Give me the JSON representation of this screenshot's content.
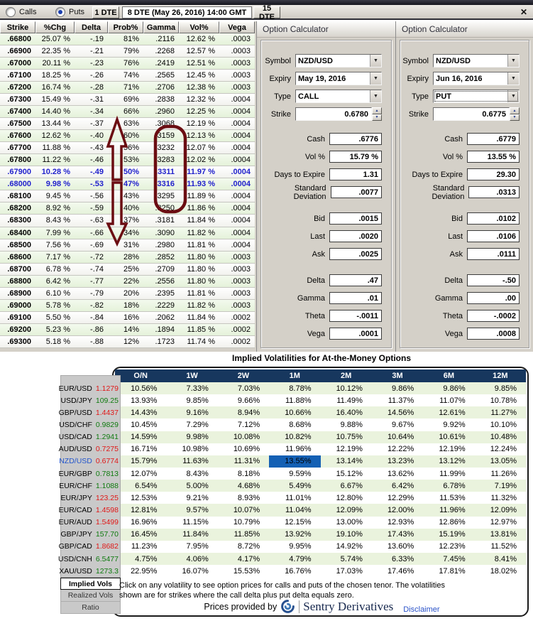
{
  "toolbar": {
    "calls_label": "Calls",
    "puts_label": "Puts",
    "dte1_label": "1 DTE",
    "dte_display": "8 DTE (May 26, 2016) 14:00 GMT",
    "dte15_label": "15 DTE",
    "close_glyph": "✕"
  },
  "chain": {
    "headers": [
      "Strike",
      "%Chg",
      "Delta",
      "Prob%",
      "Gamma",
      "Vol%",
      "Vega"
    ],
    "highlight_rows": [
      11,
      12
    ],
    "rows": [
      [
        ".66800",
        "25.07 %",
        "-.19",
        "81%",
        ".2116",
        "12.62 %",
        ".0003"
      ],
      [
        ".66900",
        "22.35 %",
        "-.21",
        "79%",
        ".2268",
        "12.57 %",
        ".0003"
      ],
      [
        ".67000",
        "20.11 %",
        "-.23",
        "76%",
        ".2419",
        "12.51 %",
        ".0003"
      ],
      [
        ".67100",
        "18.25 %",
        "-.26",
        "74%",
        ".2565",
        "12.45 %",
        ".0003"
      ],
      [
        ".67200",
        "16.74 %",
        "-.28",
        "71%",
        ".2706",
        "12.38 %",
        ".0003"
      ],
      [
        ".67300",
        "15.49 %",
        "-.31",
        "69%",
        ".2838",
        "12.32 %",
        ".0004"
      ],
      [
        ".67400",
        "14.40 %",
        "-.34",
        "66%",
        ".2960",
        "12.25 %",
        ".0004"
      ],
      [
        ".67500",
        "13.44 %",
        "-.37",
        "63%",
        ".3068",
        "12.19 %",
        ".0004"
      ],
      [
        ".67600",
        "12.62 %",
        "-.40",
        "60%",
        ".3159",
        "12.13 %",
        ".0004"
      ],
      [
        ".67700",
        "11.88 %",
        "-.43",
        "56%",
        ".3232",
        "12.07 %",
        ".0004"
      ],
      [
        ".67800",
        "11.22 %",
        "-.46",
        "53%",
        ".3283",
        "12.02 %",
        ".0004"
      ],
      [
        ".67900",
        "10.28 %",
        "-.49",
        "50%",
        ".3311",
        "11.97 %",
        ".0004"
      ],
      [
        ".68000",
        "9.98 %",
        "-.53",
        "47%",
        ".3316",
        "11.93 %",
        ".0004"
      ],
      [
        ".68100",
        "9.45 %",
        "-.56",
        "43%",
        ".3295",
        "11.89 %",
        ".0004"
      ],
      [
        ".68200",
        "8.92 %",
        "-.59",
        "40%",
        ".3250",
        "11.86 %",
        ".0004"
      ],
      [
        ".68300",
        "8.43 %",
        "-.63",
        "37%",
        ".3181",
        "11.84 %",
        ".0004"
      ],
      [
        ".68400",
        "7.99 %",
        "-.66",
        "34%",
        ".3090",
        "11.82 %",
        ".0004"
      ],
      [
        ".68500",
        "7.56 %",
        "-.69",
        "31%",
        ".2980",
        "11.81 %",
        ".0004"
      ],
      [
        ".68600",
        "7.17 %",
        "-.72",
        "28%",
        ".2852",
        "11.80 %",
        ".0003"
      ],
      [
        ".68700",
        "6.78 %",
        "-.74",
        "25%",
        ".2709",
        "11.80 %",
        ".0003"
      ],
      [
        ".68800",
        "6.42 %",
        "-.77",
        "22%",
        ".2556",
        "11.80 %",
        ".0003"
      ],
      [
        ".68900",
        "6.10 %",
        "-.79",
        "20%",
        ".2395",
        "11.81 %",
        ".0003"
      ],
      [
        ".69000",
        "5.78 %",
        "-.82",
        "18%",
        ".2229",
        "11.82 %",
        ".0003"
      ],
      [
        ".69100",
        "5.50 %",
        "-.84",
        "16%",
        ".2062",
        "11.84 %",
        ".0002"
      ],
      [
        ".69200",
        "5.23 %",
        "-.86",
        "14%",
        ".1894",
        "11.85 %",
        ".0002"
      ],
      [
        ".69300",
        "5.18 %",
        "-.88",
        "12%",
        ".1723",
        "11.74 %",
        ".0002"
      ]
    ]
  },
  "calculators": [
    {
      "title": "Option Calculator",
      "symbol_label": "Symbol",
      "symbol": "NZD/USD",
      "expiry_label": "Expiry",
      "expiry": "May 19, 2016",
      "type_label": "Type",
      "type": "CALL",
      "strike_label": "Strike",
      "strike": "0.6780",
      "field_groups": [
        [
          {
            "label": "Cash",
            "value": ".6776"
          },
          {
            "label": "Vol %",
            "value": "15.79 %"
          },
          {
            "label": "Days to Expire",
            "value": "1.31"
          },
          {
            "label": "Standard Deviation",
            "value": ".0077"
          }
        ],
        [
          {
            "label": "Bid",
            "value": ".0015"
          },
          {
            "label": "Last",
            "value": ".0020"
          },
          {
            "label": "Ask",
            "value": ".0025"
          }
        ],
        [
          {
            "label": "Delta",
            "value": ".47"
          },
          {
            "label": "Gamma",
            "value": ".01"
          },
          {
            "label": "Theta",
            "value": "-.0011"
          },
          {
            "label": "Vega",
            "value": ".0001"
          }
        ]
      ]
    },
    {
      "title": "Option Calculator",
      "symbol_label": "Symbol",
      "symbol": "NZD/USD",
      "expiry_label": "Expiry",
      "expiry": "Jun 16, 2016",
      "type_label": "Type",
      "type": "PUT",
      "strike_label": "Strike",
      "strike": "0.6775",
      "field_groups": [
        [
          {
            "label": "Cash",
            "value": ".6779"
          },
          {
            "label": "Vol %",
            "value": "13.55 %"
          },
          {
            "label": "Days to Expire",
            "value": "29.30"
          },
          {
            "label": "Standard Deviation",
            "value": ".0313"
          }
        ],
        [
          {
            "label": "Bid",
            "value": ".0102"
          },
          {
            "label": "Last",
            "value": ".0106"
          },
          {
            "label": "Ask",
            "value": ".0111"
          }
        ],
        [
          {
            "label": "Delta",
            "value": "-.50"
          },
          {
            "label": "Gamma",
            "value": ".00"
          },
          {
            "label": "Theta",
            "value": "-.0002"
          },
          {
            "label": "Vega",
            "value": ".0008"
          }
        ]
      ]
    }
  ],
  "vol_section": {
    "title": "Implied Volatilities for At-the-Money Options",
    "tenors": [
      "O/N",
      "1W",
      "2W",
      "1M",
      "2M",
      "3M",
      "6M",
      "12M"
    ],
    "highlight_pair_index": 6,
    "highlight_tenor_index": 3,
    "pairs": [
      {
        "name": "EUR/USD",
        "price": "1.1279",
        "dir": "down",
        "selected": false,
        "vols": [
          "10.56%",
          "7.33%",
          "7.03%",
          "8.78%",
          "10.12%",
          "9.86%",
          "9.86%",
          "9.85%"
        ]
      },
      {
        "name": "USD/JPY",
        "price": "109.25",
        "dir": "up",
        "selected": false,
        "vols": [
          "13.93%",
          "9.85%",
          "9.66%",
          "11.88%",
          "11.49%",
          "11.37%",
          "11.07%",
          "10.78%"
        ]
      },
      {
        "name": "GBP/USD",
        "price": "1.4437",
        "dir": "down",
        "selected": false,
        "vols": [
          "14.43%",
          "9.16%",
          "8.94%",
          "10.66%",
          "16.40%",
          "14.56%",
          "12.61%",
          "11.27%"
        ]
      },
      {
        "name": "USD/CHF",
        "price": "0.9829",
        "dir": "up",
        "selected": false,
        "vols": [
          "10.45%",
          "7.29%",
          "7.12%",
          "8.68%",
          "9.88%",
          "9.67%",
          "9.92%",
          "10.10%"
        ]
      },
      {
        "name": "USD/CAD",
        "price": "1.2941",
        "dir": "up",
        "selected": false,
        "vols": [
          "14.59%",
          "9.98%",
          "10.08%",
          "10.82%",
          "10.75%",
          "10.64%",
          "10.61%",
          "10.48%"
        ]
      },
      {
        "name": "AUD/USD",
        "price": "0.7275",
        "dir": "down",
        "selected": false,
        "vols": [
          "16.71%",
          "10.98%",
          "10.69%",
          "11.96%",
          "12.19%",
          "12.22%",
          "12.19%",
          "12.24%"
        ]
      },
      {
        "name": "NZD/USD",
        "price": "0.6774",
        "dir": "down",
        "selected": true,
        "vols": [
          "15.79%",
          "11.63%",
          "11.31%",
          "13.55%",
          "13.14%",
          "13.23%",
          "13.12%",
          "13.05%"
        ]
      },
      {
        "name": "EUR/GBP",
        "price": "0.7813",
        "dir": "up",
        "selected": false,
        "vols": [
          "12.07%",
          "8.43%",
          "8.18%",
          "9.59%",
          "15.12%",
          "13.62%",
          "11.99%",
          "11.26%"
        ]
      },
      {
        "name": "EUR/CHF",
        "price": "1.1088",
        "dir": "up",
        "selected": false,
        "vols": [
          "6.54%",
          "5.00%",
          "4.68%",
          "5.49%",
          "6.67%",
          "6.42%",
          "6.78%",
          "7.19%"
        ]
      },
      {
        "name": "EUR/JPY",
        "price": "123.25",
        "dir": "down",
        "selected": false,
        "vols": [
          "12.53%",
          "9.21%",
          "8.93%",
          "11.01%",
          "12.80%",
          "12.29%",
          "11.53%",
          "11.32%"
        ]
      },
      {
        "name": "EUR/CAD",
        "price": "1.4598",
        "dir": "down",
        "selected": false,
        "vols": [
          "12.81%",
          "9.57%",
          "10.07%",
          "11.04%",
          "12.09%",
          "12.00%",
          "11.96%",
          "12.09%"
        ]
      },
      {
        "name": "EUR/AUD",
        "price": "1.5499",
        "dir": "down",
        "selected": false,
        "vols": [
          "16.96%",
          "11.15%",
          "10.79%",
          "12.15%",
          "13.00%",
          "12.93%",
          "12.86%",
          "12.97%"
        ]
      },
      {
        "name": "GBP/JPY",
        "price": "157.70",
        "dir": "up",
        "selected": false,
        "vols": [
          "16.45%",
          "11.84%",
          "11.85%",
          "13.92%",
          "19.10%",
          "17.43%",
          "15.19%",
          "13.81%"
        ]
      },
      {
        "name": "GBP/CAD",
        "price": "1.8682",
        "dir": "down",
        "selected": false,
        "vols": [
          "11.23%",
          "7.95%",
          "8.72%",
          "9.95%",
          "14.92%",
          "13.60%",
          "12.23%",
          "11.52%"
        ]
      },
      {
        "name": "USD/CNH",
        "price": "6.5477",
        "dir": "up",
        "selected": false,
        "vols": [
          "4.75%",
          "4.06%",
          "4.17%",
          "4.79%",
          "5.74%",
          "6.33%",
          "7.45%",
          "8.41%"
        ]
      },
      {
        "name": "XAU/USD",
        "price": "1273.3",
        "dir": "up",
        "selected": false,
        "vols": [
          "22.95%",
          "16.07%",
          "15.53%",
          "16.76%",
          "17.03%",
          "17.46%",
          "17.81%",
          "18.02%"
        ]
      }
    ],
    "tabs": [
      "Implied Vols",
      "Realized Vols",
      "Ratio"
    ],
    "active_tab": "Implied Vols",
    "note_line1": "Click on any volatility to see option prices for calls and puts of the chosen tenor. The volatilities",
    "note_line2": "shown are for strikes where the call delta plus put delta equals zero.",
    "provider_prefix": "Prices provided by",
    "provider_name": "Sentry Derivatives",
    "disclaimer_label": "Disclaimer"
  },
  "colors": {
    "header_navy": "#17375e",
    "highlight_blue": "#1460b4",
    "annotation_maroon": "#6b0d12",
    "row_green": "#eaf3dd",
    "blue_row_text": "#2121cc",
    "up_green": "#0e7a0e",
    "down_red": "#e01717",
    "link_blue": "#2a52c8"
  }
}
